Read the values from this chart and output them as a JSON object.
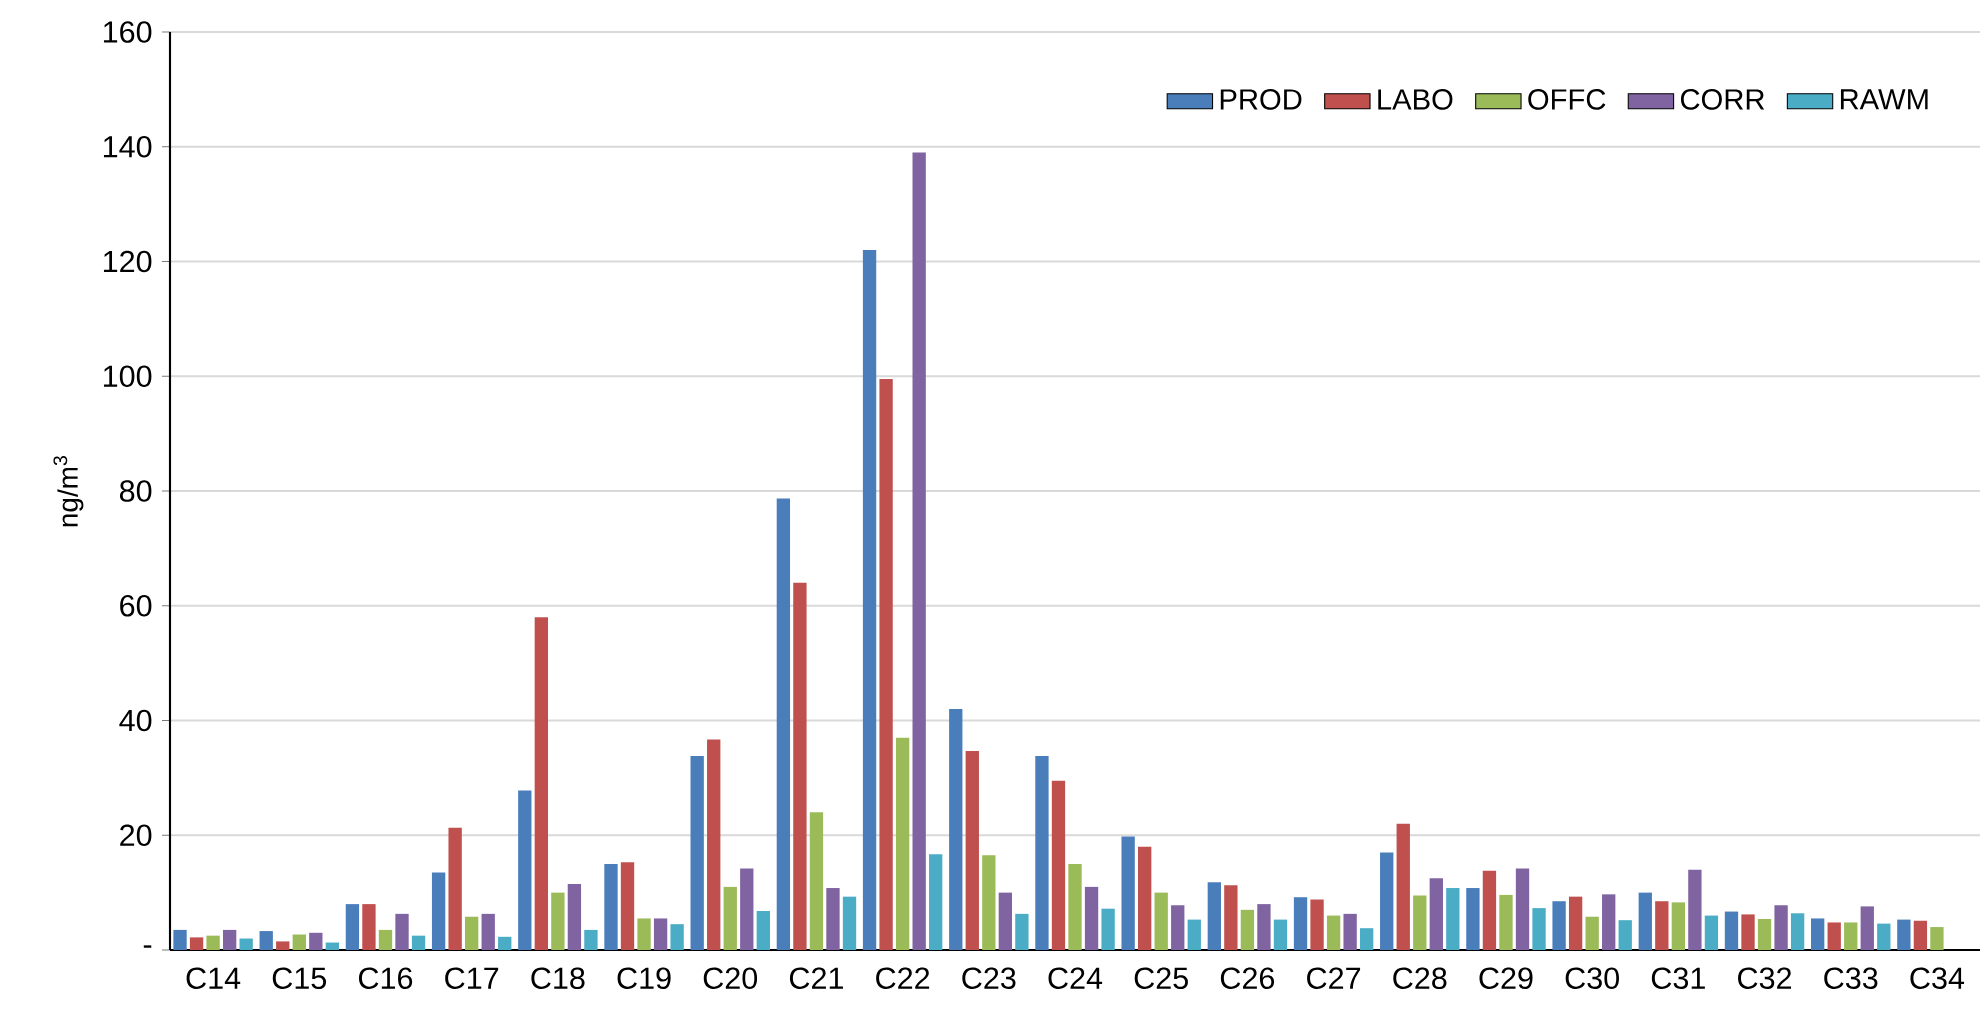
{
  "chart_data": {
    "type": "bar",
    "ylabel": "ng/m$^{3}$",
    "categories": [
      "C14",
      "C15",
      "C16",
      "C17",
      "C18",
      "C19",
      "C20",
      "C21",
      "C22",
      "C23",
      "C24",
      "C25",
      "C26",
      "C27",
      "C28",
      "C29",
      "C30",
      "C31",
      "C32",
      "C33",
      "C34"
    ],
    "series": [
      {
        "name": "PROD",
        "color": "#4a7ebb",
        "values": [
          3.5,
          3.3,
          8,
          13.5,
          27.8,
          15,
          33.8,
          78.7,
          122,
          42,
          33.8,
          19.8,
          11.8,
          9.2,
          17,
          10.8,
          8.5,
          10,
          6.7,
          5.5,
          5.3
        ]
      },
      {
        "name": "LABO",
        "color": "#c0504d",
        "values": [
          2.2,
          1.5,
          8,
          21.3,
          58,
          15.3,
          36.7,
          64,
          99.5,
          34.7,
          29.5,
          18,
          11.3,
          8.8,
          22,
          13.8,
          9.3,
          8.5,
          6.2,
          4.8,
          5.1
        ]
      },
      {
        "name": "OFFC",
        "color": "#9bbb59",
        "values": [
          2.5,
          2.7,
          3.5,
          5.8,
          10,
          5.5,
          11,
          24,
          37,
          16.5,
          15,
          10,
          7,
          6,
          9.5,
          9.6,
          5.8,
          8.3,
          5.4,
          4.8,
          4
        ]
      },
      {
        "name": "CORR",
        "color": "#8064a2",
        "values": [
          3.5,
          3,
          6.3,
          6.3,
          11.5,
          5.5,
          14.2,
          10.8,
          139,
          10,
          11,
          7.8,
          8,
          6.3,
          12.5,
          14.2,
          9.7,
          14,
          7.8,
          7.6,
          null
        ]
      },
      {
        "name": "RAWM",
        "color": "#4bacc6",
        "values": [
          2,
          1.3,
          2.5,
          2.3,
          3.5,
          4.5,
          6.8,
          9.3,
          16.7,
          6.3,
          7.2,
          5.3,
          5.3,
          3.8,
          10.8,
          7.3,
          5.2,
          6,
          6.4,
          4.6,
          null
        ]
      }
    ],
    "ylim": [
      0,
      160
    ],
    "yticks": [
      {
        "value": 0,
        "label": "-"
      },
      20,
      40,
      60,
      80,
      100,
      120,
      140,
      160
    ],
    "grid": "y",
    "legend": "top right"
  }
}
